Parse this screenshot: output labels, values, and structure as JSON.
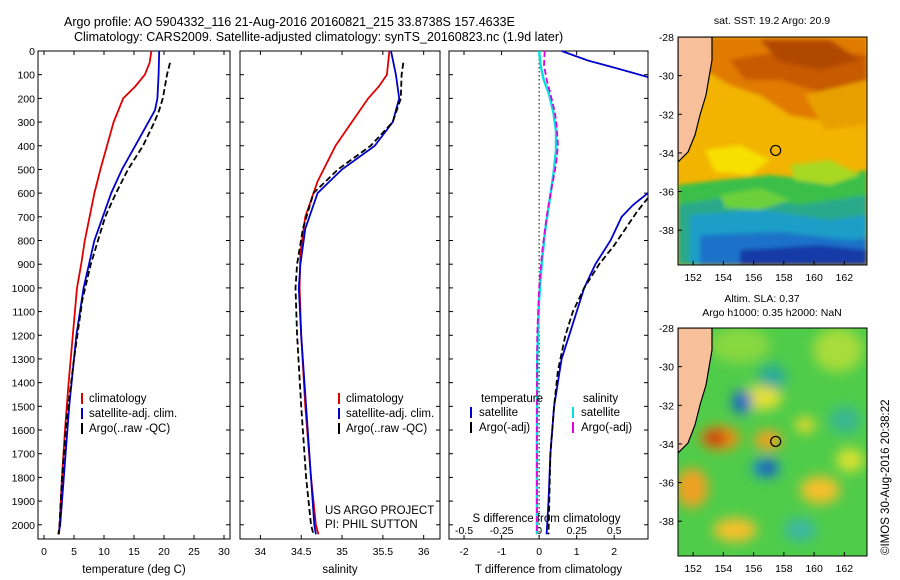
{
  "header": {
    "line1": "Argo profile: AO 5904332_116 21-Aug-2016 20160821_215 33.8738S 157.4633E",
    "line2": "Climatology: CARS2009. Satellite-adjusted climatology: synTS_20160823.nc (1.9d later)"
  },
  "side_text": "©IMOS 30-Aug-2016 20:38:22",
  "chart_data": [
    {
      "id": "temperature",
      "type": "line",
      "xlabel": "temperature (deg C)",
      "xlim": [
        -1,
        31
      ],
      "ylim": [
        0,
        2060
      ],
      "xticks": [
        0,
        5,
        10,
        15,
        20,
        25,
        30
      ],
      "yticks": [
        0,
        100,
        200,
        300,
        400,
        500,
        600,
        700,
        800,
        900,
        1000,
        1100,
        1200,
        1300,
        1400,
        1500,
        1600,
        1700,
        1800,
        1900,
        2000
      ],
      "legend": {
        "position": "lower-center",
        "entries": [
          "climatology",
          "satellite-adj. clim.",
          "Argo(..raw -QC)"
        ]
      },
      "colors": [
        "#e00000",
        "#0000cc",
        "#000000"
      ],
      "series": [
        {
          "name": "climatology",
          "style": "solid",
          "x": [
            17.9,
            17.6,
            16.8,
            15.2,
            13.2,
            11.6,
            10.5,
            9.4,
            8.4,
            7.6,
            6.8,
            6.2,
            5.5,
            4.8,
            4.1,
            3.5,
            3.0,
            2.8,
            2.6,
            2.5
          ],
          "y": [
            0,
            50,
            100,
            150,
            200,
            300,
            400,
            500,
            600,
            700,
            800,
            900,
            1000,
            1200,
            1400,
            1600,
            1800,
            1900,
            2000,
            2040
          ]
        },
        {
          "name": "satellite-adj. clim.",
          "style": "solid",
          "x": [
            19.2,
            19.1,
            18.9,
            18.5,
            17.4,
            15.2,
            13.0,
            11.2,
            9.8,
            8.4,
            7.5,
            6.6,
            5.4,
            4.2,
            3.3,
            2.7,
            2.4
          ],
          "y": [
            0,
            100,
            200,
            250,
            300,
            400,
            500,
            600,
            700,
            800,
            900,
            1000,
            1200,
            1500,
            1800,
            2000,
            2040
          ]
        },
        {
          "name": "Argo(..raw -QC)",
          "style": "dashed",
          "x": [
            21.0,
            20.5,
            19.8,
            19.2,
            18.4,
            16.5,
            14.0,
            12.0,
            10.2,
            9.0,
            7.8,
            6.4,
            5.0,
            3.8,
            3.0,
            2.6,
            2.4
          ],
          "y": [
            50,
            100,
            200,
            250,
            300,
            400,
            500,
            600,
            700,
            800,
            900,
            1050,
            1300,
            1550,
            1800,
            2000,
            2040
          ]
        }
      ],
      "note_lines": []
    },
    {
      "id": "salinity",
      "type": "line",
      "xlabel": "salinity",
      "xlim": [
        33.75,
        36.2
      ],
      "ylim": [
        0,
        2060
      ],
      "xticks": [
        34,
        34.5,
        35,
        35.5,
        36
      ],
      "xtick_labels": [
        "34",
        "34.5",
        "35",
        "35.5",
        "36"
      ],
      "legend": {
        "position": "lower-center",
        "entries": [
          "climatology",
          "satellite-adj. clim.",
          "Argo(..raw -QC)"
        ]
      },
      "colors": [
        "#e00000",
        "#0000cc",
        "#000000"
      ],
      "series": [
        {
          "name": "climatology",
          "style": "solid",
          "x": [
            35.58,
            35.55,
            35.45,
            35.32,
            35.12,
            34.92,
            34.7,
            34.55,
            34.49,
            34.48,
            34.5,
            34.55,
            34.62,
            34.68,
            34.71
          ],
          "y": [
            0,
            100,
            150,
            200,
            300,
            400,
            550,
            700,
            850,
            1000,
            1200,
            1500,
            1800,
            2000,
            2040
          ]
        },
        {
          "name": "satellite-adj. clim.",
          "style": "solid",
          "x": [
            35.6,
            35.66,
            35.7,
            35.62,
            35.4,
            35.0,
            34.7,
            34.55,
            34.49,
            34.47,
            34.5,
            34.56,
            34.62,
            34.66,
            34.68
          ],
          "y": [
            0,
            100,
            200,
            300,
            400,
            500,
            600,
            750,
            900,
            1000,
            1200,
            1500,
            1800,
            2000,
            2040
          ]
        },
        {
          "name": "Argo(..raw -QC)",
          "style": "dashed",
          "x": [
            35.75,
            35.73,
            35.72,
            35.62,
            35.35,
            34.95,
            34.65,
            34.52,
            34.45,
            34.43,
            34.45,
            34.5,
            34.56,
            34.62,
            34.65
          ],
          "y": [
            50,
            100,
            200,
            300,
            400,
            500,
            600,
            750,
            900,
            1000,
            1200,
            1500,
            1800,
            2000,
            2040
          ]
        }
      ],
      "note_lines": [
        "US ARGO PROJECT",
        "PI: PHIL SUTTON"
      ]
    },
    {
      "id": "difference",
      "type": "line",
      "xlabel": "T difference from climatology",
      "xlabel_top": "S difference from climatology",
      "xlim": [
        -2.4,
        2.9
      ],
      "ylim": [
        0,
        2060
      ],
      "xticks": [
        -2,
        -1,
        0,
        1,
        2
      ],
      "xtick_labels": [
        "-2",
        "-1",
        "0",
        "1",
        "2"
      ],
      "xticks_s": [
        -0.5,
        -0.25,
        0,
        0.25,
        0.5
      ],
      "xtick_labels_s": [
        "-0.5",
        "-0.25",
        "0",
        "0.25",
        "0.5"
      ],
      "legend": {
        "position": "lower-center",
        "group_titles": [
          "temperature",
          "salinity"
        ],
        "entries": [
          "satellite",
          "Argo(-adj)",
          "satellite",
          "Argo(-adj)"
        ]
      },
      "colors": [
        "#0000cc",
        "#000000",
        "#00e0e0",
        "#e000e0"
      ],
      "series": [
        {
          "name": "satellite",
          "group": "temperature",
          "style": "solid",
          "x": [
            0.6,
            1.3,
            2.0,
            2.9
          ],
          "y": [
            0,
            40,
            70,
            110
          ]
        },
        {
          "name": "satellite",
          "group": "temperature",
          "style": "solid",
          "x": [
            2.9,
            2.5,
            2.2,
            1.9,
            1.5,
            1.2,
            1.0,
            0.8,
            0.6,
            0.4,
            0.3,
            0.25,
            0.2
          ],
          "y": [
            600,
            650,
            700,
            800,
            900,
            1000,
            1100,
            1200,
            1300,
            1500,
            1700,
            1900,
            2040
          ]
        },
        {
          "name": "Argo(-adj)",
          "group": "temperature",
          "style": "dashed",
          "x": [
            2.9,
            2.6,
            2.3,
            2.0,
            1.6,
            1.2,
            0.9,
            0.7,
            0.5,
            0.4,
            0.3,
            0.25
          ],
          "y": [
            620,
            680,
            750,
            820,
            900,
            1000,
            1100,
            1200,
            1350,
            1500,
            1700,
            2040
          ]
        },
        {
          "name": "satellite",
          "group": "salinity",
          "style": "solid",
          "x": [
            0.0,
            0.04,
            0.12,
            0.26,
            0.38,
            0.45,
            0.45,
            0.38,
            0.27,
            0.16,
            0.07,
            0.0,
            -0.05,
            -0.06,
            -0.06
          ],
          "y": [
            0,
            60,
            120,
            180,
            260,
            340,
            420,
            520,
            640,
            760,
            900,
            1050,
            1300,
            1700,
            2040
          ]
        },
        {
          "name": "Argo(-adj)",
          "group": "salinity",
          "style": "dashed",
          "x": [
            0.15,
            0.13,
            0.2,
            0.3,
            0.42,
            0.47,
            0.5,
            0.45,
            0.33,
            0.2,
            0.08,
            0.0,
            -0.05,
            -0.06,
            -0.06
          ],
          "y": [
            0,
            60,
            120,
            180,
            260,
            320,
            400,
            480,
            580,
            700,
            850,
            1000,
            1200,
            1600,
            2040
          ]
        }
      ],
      "note_lines": []
    },
    {
      "id": "sst-map",
      "type": "heatmap",
      "title": "sat. SST: 19.2 Argo: 20.9",
      "xlim": [
        151,
        163.5
      ],
      "ylim": [
        -39.8,
        -28
      ],
      "xticks": [
        152,
        154,
        156,
        158,
        160,
        162
      ],
      "yticks": [
        -28,
        -30,
        -32,
        -34,
        -36,
        -38
      ],
      "argo_position": [
        157.46,
        -33.87
      ]
    },
    {
      "id": "sla-map",
      "type": "heatmap",
      "title": "Altim. SLA: 0.37",
      "subtitle": "Argo h1000: 0.35 h2000: NaN",
      "xlim": [
        151,
        163.5
      ],
      "ylim": [
        -39.8,
        -28
      ],
      "xticks": [
        152,
        154,
        156,
        158,
        160,
        162
      ],
      "yticks": [
        -28,
        -30,
        -32,
        -34,
        -36,
        -38
      ],
      "argo_position": [
        157.46,
        -33.87
      ]
    }
  ]
}
